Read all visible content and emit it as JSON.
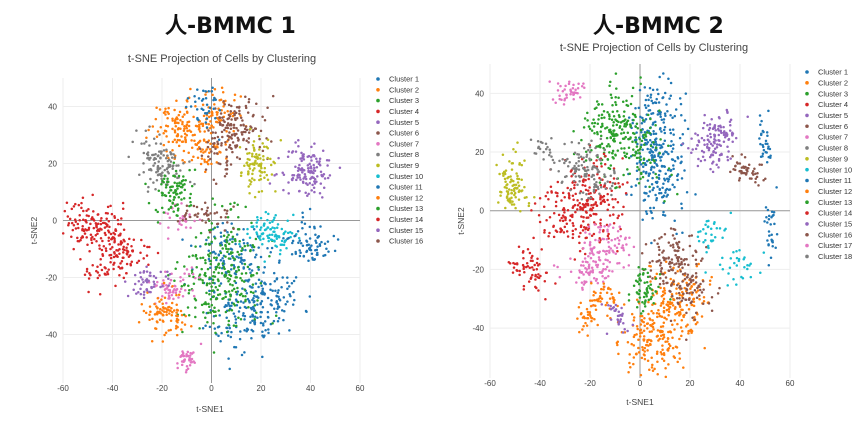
{
  "panels": [
    {
      "heading": "人-BMMC 1"
    },
    {
      "heading": "人-BMMC 2"
    }
  ],
  "chart_data": [
    {
      "type": "scatter",
      "title": "t-SNE Projection of Cells by Clustering",
      "xlabel": "t-SNE1",
      "ylabel": "t-SNE2",
      "xlim": [
        -60,
        60
      ],
      "ylim": [
        -57,
        50
      ],
      "xticks": [
        -60,
        -40,
        -20,
        0,
        20,
        40,
        60
      ],
      "yticks": [
        -40,
        -20,
        0,
        20,
        40
      ],
      "series": [
        {
          "name": "Cluster 1",
          "color": "#1f77b4",
          "centers": [
            [
              23,
              -26
            ],
            [
              8,
              -12
            ],
            [
              12,
              -34
            ]
          ],
          "spread": [
            7,
            6
          ],
          "n": 330
        },
        {
          "name": "Cluster 2",
          "color": "#ff7f0e",
          "centers": [
            [
              -15,
              33
            ],
            [
              -5,
              28
            ],
            [
              0,
              38
            ]
          ],
          "spread": [
            5,
            5
          ],
          "n": 230
        },
        {
          "name": "Cluster 3",
          "color": "#2ca02c",
          "centers": [
            [
              6,
              -8
            ],
            [
              -3,
              -25
            ],
            [
              8,
              -22
            ]
          ],
          "spread": [
            6,
            7
          ],
          "n": 260
        },
        {
          "name": "Cluster 4",
          "color": "#d62728",
          "centers": [
            [
              -45,
              -2
            ],
            [
              -53,
              -1
            ],
            [
              -40,
              -6
            ]
          ],
          "spread": [
            5,
            4
          ],
          "n": 160
        },
        {
          "name": "Cluster 5",
          "color": "#9467bd",
          "centers": [
            [
              37,
              18
            ],
            [
              40,
              16
            ]
          ],
          "spread": [
            5,
            4
          ],
          "n": 130
        },
        {
          "name": "Cluster 6",
          "color": "#8c564b",
          "centers": [
            [
              8,
              34
            ],
            [
              5,
              24
            ],
            [
              14,
              33
            ]
          ],
          "spread": [
            4,
            5
          ],
          "n": 160
        },
        {
          "name": "Cluster 7",
          "color": "#e377c2",
          "centers": [
            [
              -14,
              -22
            ],
            [
              -18,
              -25
            ],
            [
              -12,
              0
            ]
          ],
          "spread": [
            4,
            3
          ],
          "n": 90
        },
        {
          "name": "Cluster 8",
          "color": "#7f7f7f",
          "centers": [
            [
              -22,
              22
            ],
            [
              -18,
              18
            ]
          ],
          "spread": [
            4,
            4
          ],
          "n": 110
        },
        {
          "name": "Cluster 9",
          "color": "#bcbd22",
          "centers": [
            [
              17,
              17
            ],
            [
              20,
              22
            ]
          ],
          "spread": [
            3,
            4
          ],
          "n": 90
        },
        {
          "name": "Cluster 10",
          "color": "#17becf",
          "centers": [
            [
              26,
              -6
            ],
            [
              22,
              -3
            ]
          ],
          "spread": [
            4,
            3
          ],
          "n": 90
        },
        {
          "name": "Cluster 11",
          "color": "#1f77b4",
          "centers": [
            [
              37,
              -7
            ],
            [
              42,
              -10
            ],
            [
              -3,
              40
            ]
          ],
          "spread": [
            4,
            4
          ],
          "n": 110
        },
        {
          "name": "Cluster 12",
          "color": "#ff7f0e",
          "centers": [
            [
              -20,
              -32
            ],
            [
              -16,
              -35
            ]
          ],
          "spread": [
            4,
            3
          ],
          "n": 90
        },
        {
          "name": "Cluster 13",
          "color": "#2ca02c",
          "centers": [
            [
              -16,
              8
            ],
            [
              -14,
              12
            ]
          ],
          "spread": [
            4,
            4
          ],
          "n": 90
        },
        {
          "name": "Cluster 14",
          "color": "#d62728",
          "centers": [
            [
              -38,
              -11
            ],
            [
              -32,
              -12
            ],
            [
              -44,
              -18
            ]
          ],
          "spread": [
            4,
            3
          ],
          "n": 90
        },
        {
          "name": "Cluster 15",
          "color": "#9467bd",
          "centers": [
            [
              -28,
              -24
            ],
            [
              -23,
              -20
            ]
          ],
          "spread": [
            3,
            2
          ],
          "n": 50
        },
        {
          "name": "Cluster 16",
          "color": "#8c564b",
          "centers": [
            [
              -2,
              2
            ],
            [
              2,
              1
            ],
            [
              -8,
              2
            ]
          ],
          "spread": [
            3,
            2
          ],
          "n": 40
        }
      ],
      "extra_points": [
        {
          "name": "Cluster 7",
          "color": "#e377c2",
          "centers": [
            [
              -10,
              -49
            ]
          ],
          "spread": [
            2,
            2
          ],
          "n": 40
        }
      ]
    },
    {
      "type": "scatter",
      "title": "t-SNE Projection of Cells by Clustering",
      "xlabel": "t-SNE1",
      "ylabel": "t-SNE2",
      "xlim": [
        -60,
        60
      ],
      "ylim": [
        -57,
        50
      ],
      "xticks": [
        -60,
        -40,
        -20,
        0,
        20,
        40,
        60
      ],
      "yticks": [
        -40,
        -20,
        0,
        20,
        40
      ],
      "series": [
        {
          "name": "Cluster 1",
          "color": "#1f77b4",
          "centers": [
            [
              6,
              32
            ],
            [
              4,
              20
            ],
            [
              8,
              10
            ]
          ],
          "spread": [
            5,
            7
          ],
          "n": 300
        },
        {
          "name": "Cluster 2",
          "color": "#ff7f0e",
          "centers": [
            [
              10,
              -40
            ],
            [
              16,
              -28
            ],
            [
              4,
              -45
            ]
          ],
          "spread": [
            7,
            6
          ],
          "n": 320
        },
        {
          "name": "Cluster 3",
          "color": "#2ca02c",
          "centers": [
            [
              -13,
              26
            ],
            [
              -8,
              30
            ],
            [
              -2,
              20
            ]
          ],
          "spread": [
            6,
            6
          ],
          "n": 250
        },
        {
          "name": "Cluster 4",
          "color": "#d62728",
          "centers": [
            [
              -22,
              -2
            ],
            [
              -30,
              0
            ],
            [
              -18,
              6
            ]
          ],
          "spread": [
            6,
            6
          ],
          "n": 250
        },
        {
          "name": "Cluster 5",
          "color": "#9467bd",
          "centers": [
            [
              28,
              21
            ],
            [
              33,
              26
            ]
          ],
          "spread": [
            4,
            4
          ],
          "n": 130
        },
        {
          "name": "Cluster 6",
          "color": "#8c564b",
          "centers": [
            [
              16,
              -20
            ],
            [
              20,
              -28
            ],
            [
              12,
              -15
            ]
          ],
          "spread": [
            5,
            5
          ],
          "n": 180
        },
        {
          "name": "Cluster 7",
          "color": "#e377c2",
          "centers": [
            [
              -18,
              -16
            ],
            [
              -20,
              -22
            ],
            [
              -12,
              -10
            ]
          ],
          "spread": [
            5,
            4
          ],
          "n": 150
        },
        {
          "name": "Cluster 8",
          "color": "#7f7f7f",
          "centers": [
            [
              -27,
              14
            ],
            [
              -22,
              18
            ],
            [
              -16,
              10
            ]
          ],
          "spread": [
            4,
            4
          ],
          "n": 120
        },
        {
          "name": "Cluster 9",
          "color": "#bcbd22",
          "centers": [
            [
              -52,
              12
            ],
            [
              -50,
              6
            ]
          ],
          "spread": [
            3,
            4
          ],
          "n": 90
        },
        {
          "name": "Cluster 10",
          "color": "#17becf",
          "centers": [
            [
              28,
              -7
            ],
            [
              39,
              -19
            ]
          ],
          "spread": [
            4,
            3
          ],
          "n": 60
        },
        {
          "name": "Cluster 11",
          "color": "#1f77b4",
          "centers": [
            [
              52,
              -6
            ],
            [
              50,
              24
            ]
          ],
          "spread": [
            1.5,
            5
          ],
          "n": 60
        },
        {
          "name": "Cluster 12",
          "color": "#ff7f0e",
          "centers": [
            [
              -20,
              -36
            ],
            [
              -14,
              -30
            ]
          ],
          "spread": [
            3,
            3
          ],
          "n": 70
        },
        {
          "name": "Cluster 13",
          "color": "#2ca02c",
          "centers": [
            [
              2,
              -30
            ],
            [
              1,
              -24
            ]
          ],
          "spread": [
            3,
            3
          ],
          "n": 60
        },
        {
          "name": "Cluster 14",
          "color": "#d62728",
          "centers": [
            [
              -42,
              -22
            ],
            [
              -46,
              -18
            ]
          ],
          "spread": [
            3,
            3
          ],
          "n": 60
        },
        {
          "name": "Cluster 15",
          "color": "#9467bd",
          "centers": [
            [
              -8,
              -38
            ],
            [
              -10,
              -34
            ]
          ],
          "spread": [
            2,
            2
          ],
          "n": 30
        },
        {
          "name": "Cluster 16",
          "color": "#8c564b",
          "centers": [
            [
              40,
              14
            ],
            [
              44,
              12
            ]
          ],
          "spread": [
            3,
            2
          ],
          "n": 50
        },
        {
          "name": "Cluster 17",
          "color": "#e377c2",
          "centers": [
            [
              -27,
              41
            ],
            [
              -30,
              40
            ]
          ],
          "spread": [
            3,
            1.5
          ],
          "n": 40
        },
        {
          "name": "Cluster 18",
          "color": "#7f7f7f",
          "centers": [
            [
              -40,
              22
            ],
            [
              -38,
              20
            ]
          ],
          "spread": [
            2,
            1.5
          ],
          "n": 20
        }
      ],
      "extra_points": []
    }
  ]
}
